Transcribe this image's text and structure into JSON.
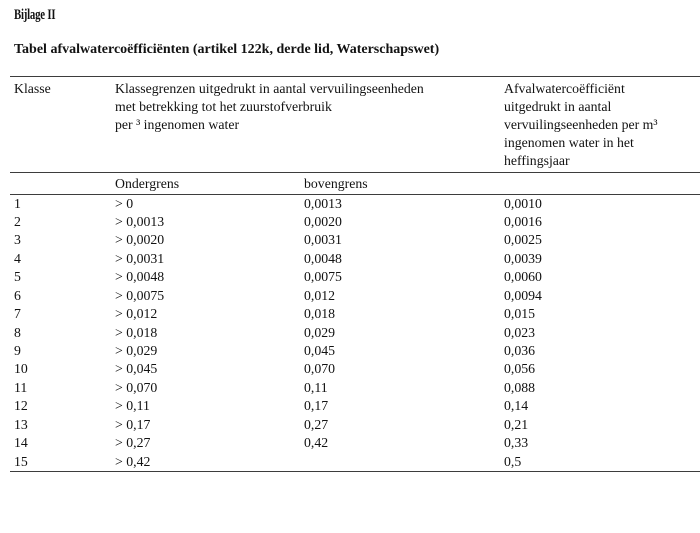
{
  "page": {
    "heading": "Bijlage II",
    "title": "Tabel afvalwatercoëfficiënten (artikel 122k, derde lid, Waterschapswet)"
  },
  "table": {
    "header": {
      "klasse": "Klasse",
      "klassegrenzen": "Klassegrenzen uitgedrukt in aantal vervuilingseenheden\nmet betrekking tot het zuurstofverbruik\nper ³ ingenomen water",
      "coefficient": "Afvalwatercoëfficiënt\nuitgedrukt in aantal\nvervuilingseenheden per m³\ningenomen water in het\nheffingsjaar"
    },
    "subheader": {
      "ondergrens": "Ondergrens",
      "bovengrens": "bovengrens"
    },
    "rows": [
      {
        "klasse": "1",
        "ondergrens": "> 0",
        "bovengrens": "0,0013",
        "coefficient": "0,0010"
      },
      {
        "klasse": "2",
        "ondergrens": "> 0,0013",
        "bovengrens": "0,0020",
        "coefficient": "0,0016"
      },
      {
        "klasse": "3",
        "ondergrens": "> 0,0020",
        "bovengrens": "0,0031",
        "coefficient": "0,0025"
      },
      {
        "klasse": "4",
        "ondergrens": "> 0,0031",
        "bovengrens": "0,0048",
        "coefficient": "0,0039"
      },
      {
        "klasse": "5",
        "ondergrens": "> 0,0048",
        "bovengrens": "0,0075",
        "coefficient": "0,0060"
      },
      {
        "klasse": "6",
        "ondergrens": "> 0,0075",
        "bovengrens": "0,012",
        "coefficient": "0,0094"
      },
      {
        "klasse": "7",
        "ondergrens": "> 0,012",
        "bovengrens": "0,018",
        "coefficient": "0,015"
      },
      {
        "klasse": "8",
        "ondergrens": "> 0,018",
        "bovengrens": "0,029",
        "coefficient": "0,023"
      },
      {
        "klasse": "9",
        "ondergrens": "> 0,029",
        "bovengrens": "0,045",
        "coefficient": "0,036"
      },
      {
        "klasse": "10",
        "ondergrens": "> 0,045",
        "bovengrens": "0,070",
        "coefficient": "0,056"
      },
      {
        "klasse": "11",
        "ondergrens": "> 0,070",
        "bovengrens": "0,11",
        "coefficient": "0,088"
      },
      {
        "klasse": "12",
        "ondergrens": "> 0,11",
        "bovengrens": "0,17",
        "coefficient": "0,14"
      },
      {
        "klasse": "13",
        "ondergrens": "> 0,17",
        "bovengrens": "0,27",
        "coefficient": "0,21"
      },
      {
        "klasse": "14",
        "ondergrens": "> 0,27",
        "bovengrens": "0,42",
        "coefficient": "0,33"
      },
      {
        "klasse": "15",
        "ondergrens": "> 0,42",
        "bovengrens": "",
        "coefficient": "0,5"
      }
    ]
  }
}
